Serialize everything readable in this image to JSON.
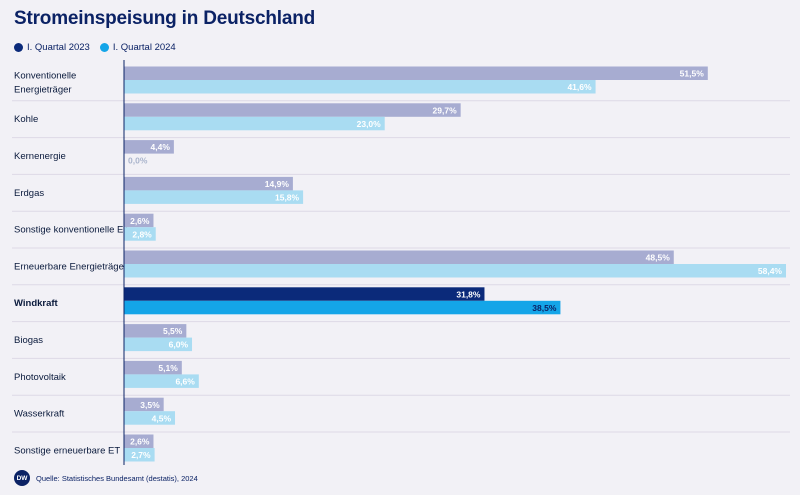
{
  "title": "Stromeinspeisung in Deutschland",
  "legend": [
    {
      "label": "I. Quartal 2023",
      "color": "#0b2a7a"
    },
    {
      "label": "I. Quartal 2024",
      "color": "#14a5e8"
    }
  ],
  "source": "Quelle: Statistisches Bundesamt (destatis), 2024",
  "logo_text": "DW",
  "colors": {
    "q2023_muted": "#a7acd1",
    "q2024_muted": "#a9dcf2",
    "q2023_highlight": "#0b2a7a",
    "q2024_highlight": "#14a5e8",
    "label_2024_muted": "#ffffff",
    "axis": "#0b2265",
    "row_line": "#ddd9e6"
  },
  "chart_data": {
    "type": "bar",
    "orientation": "horizontal",
    "unit": "%",
    "categories": [
      "Konventionelle Energieträger",
      "Kohle",
      "Kernenergie",
      "Erdgas",
      "Sonstige konventionelle ET",
      "Erneuerbare Energieträger",
      "Windkraft",
      "Biogas",
      "Photovoltaik",
      "Wasserkraft",
      "Sonstige erneuerbare ET"
    ],
    "highlighted_category": "Windkraft",
    "series": [
      {
        "name": "I. Quartal 2023",
        "values": [
          51.5,
          29.7,
          4.4,
          14.9,
          2.6,
          48.5,
          31.8,
          5.5,
          5.1,
          3.5,
          2.6
        ],
        "labels": [
          "51,5%",
          "29,7%",
          "4,4%",
          "14,9%",
          "2,6%",
          "48,5%",
          "31,8%",
          "5,5%",
          "5,1%",
          "3,5%",
          "2,6%"
        ]
      },
      {
        "name": "I. Quartal 2024",
        "values": [
          41.6,
          23.0,
          0.0,
          15.8,
          2.8,
          58.4,
          38.5,
          6.0,
          6.6,
          4.5,
          2.7
        ],
        "labels": [
          "41,6%",
          "23,0%",
          "0,0%",
          "15,8%",
          "2,8%",
          "58,4%",
          "38,5%",
          "6,0%",
          "6,6%",
          "4,5%",
          "2,7%"
        ]
      }
    ],
    "xlim": [
      0,
      58.4
    ]
  }
}
